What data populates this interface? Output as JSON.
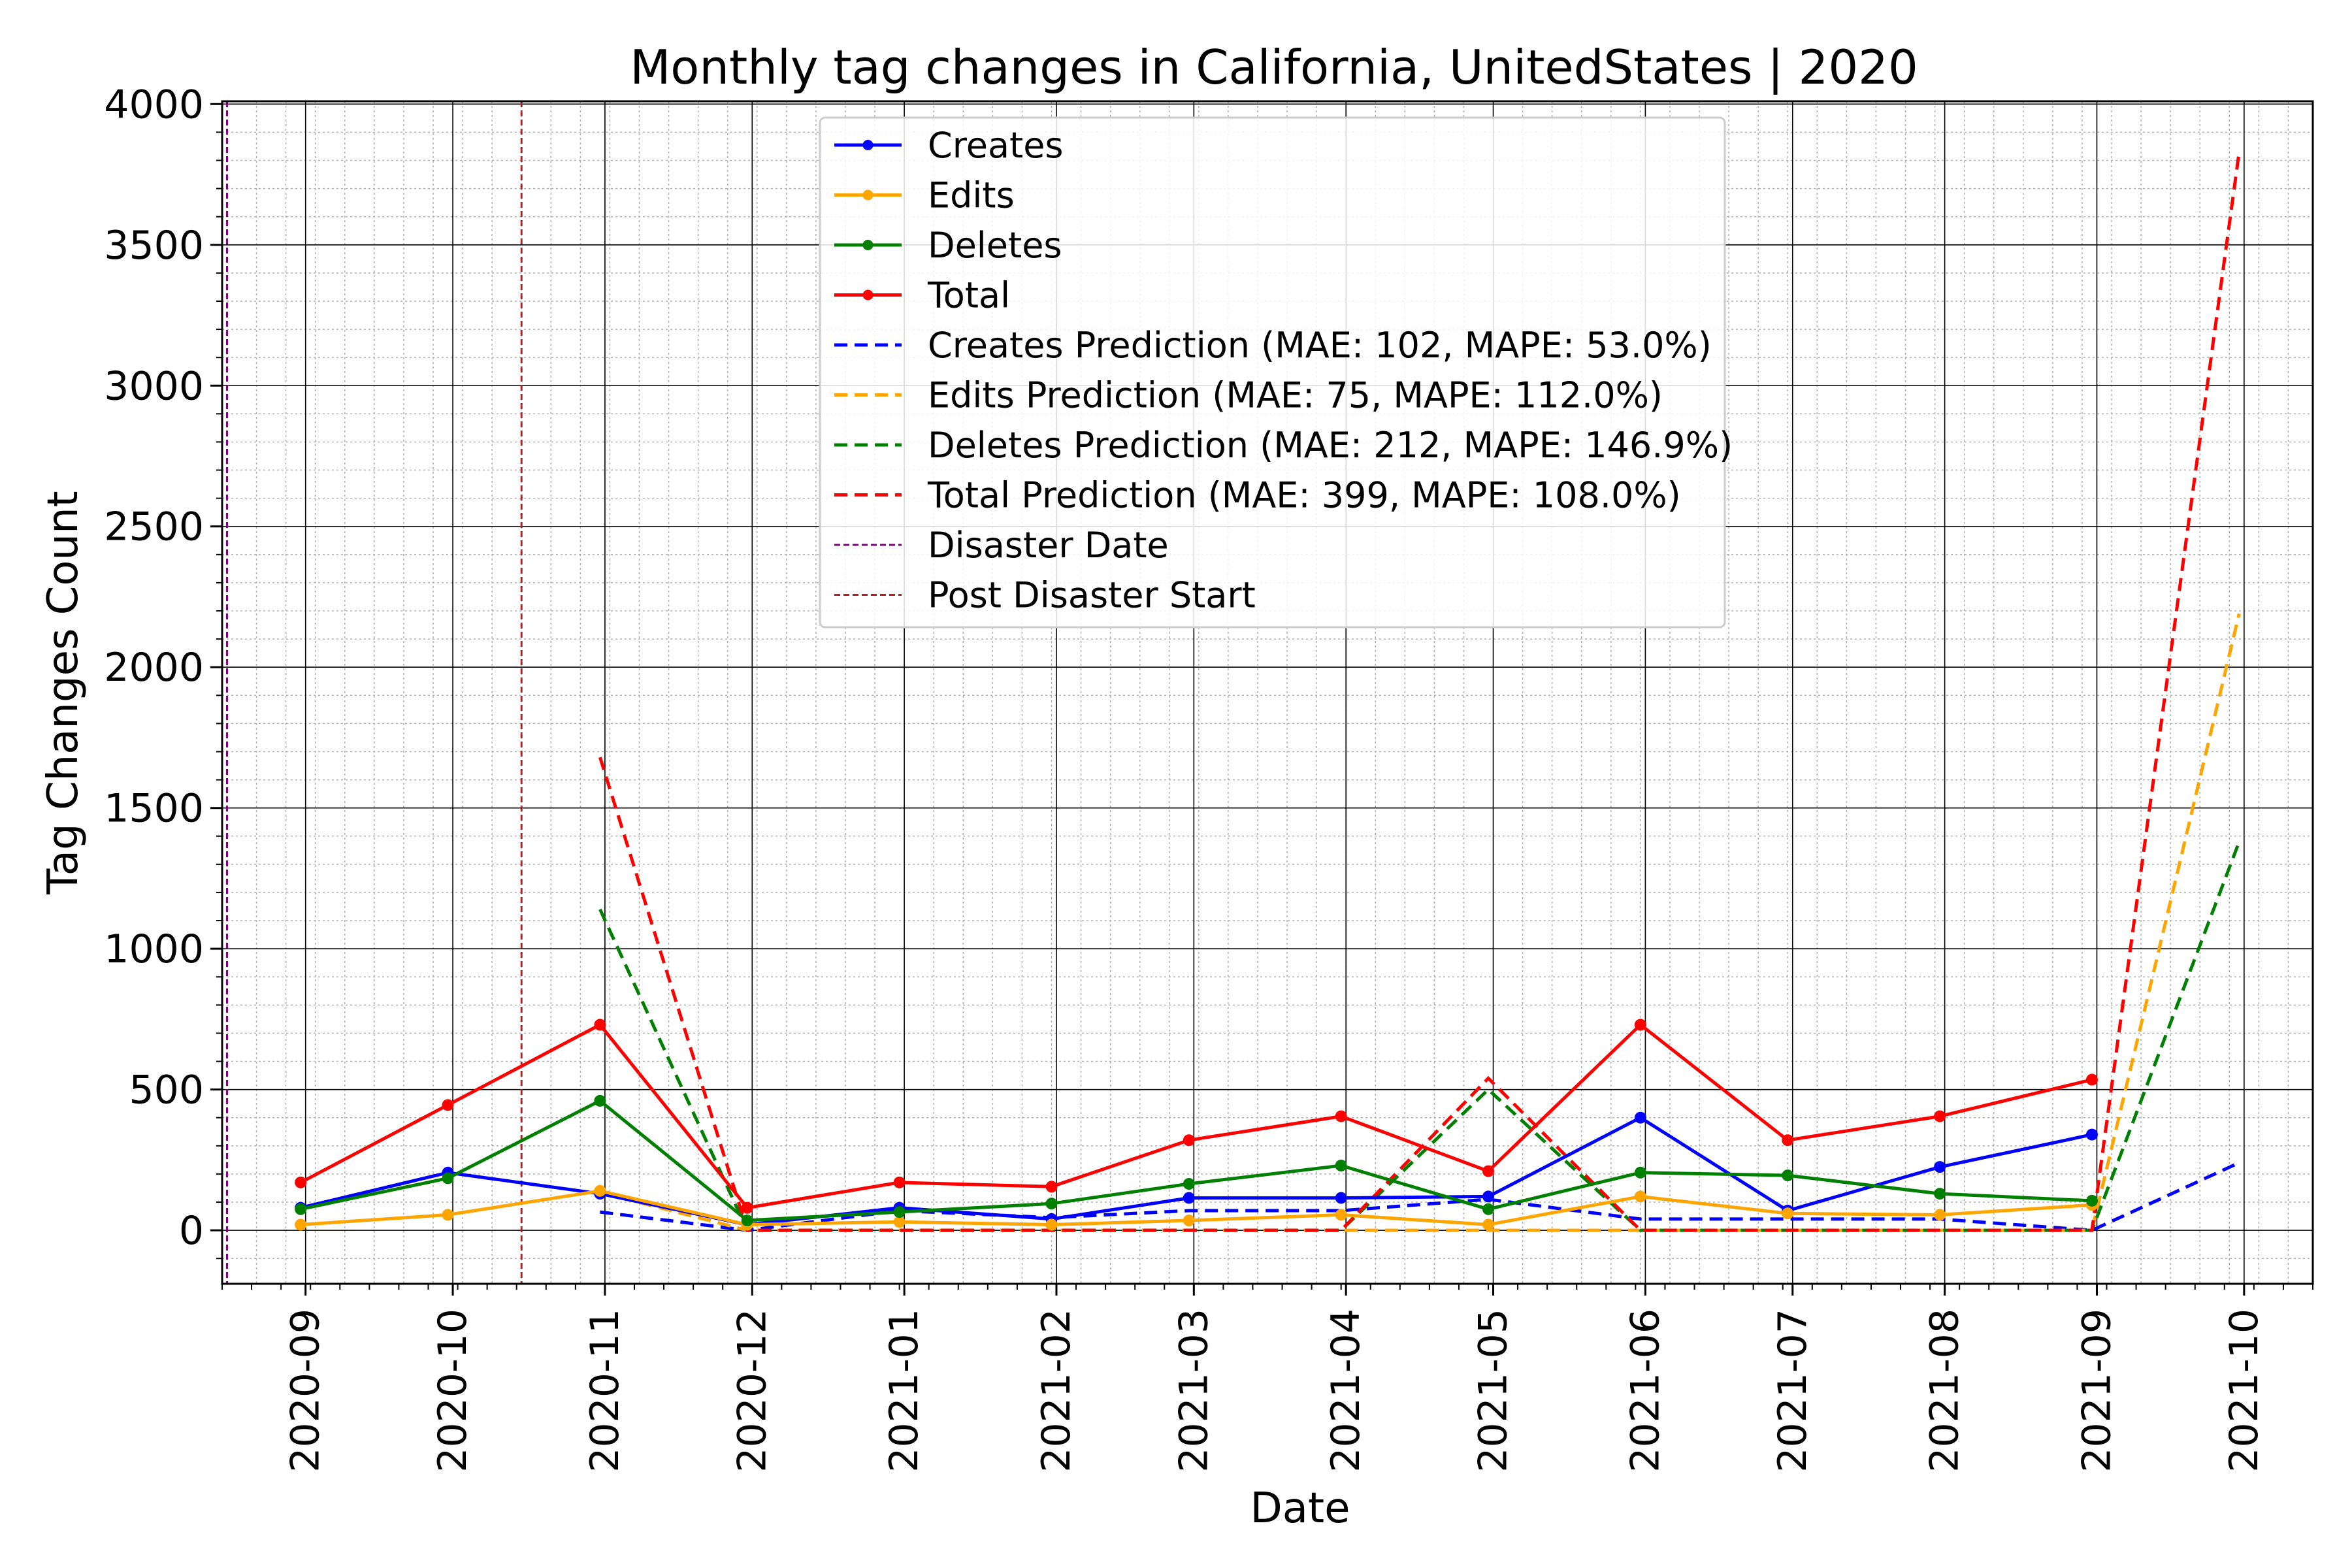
{
  "chart_data": {
    "type": "line",
    "title": "Monthly tag changes in California, UnitedStates | 2020",
    "xlabel": "Date",
    "ylabel": "Tag Changes Count",
    "ylim": [
      -190,
      4010
    ],
    "xlim": [
      "2020-08-15",
      "2021-10-15"
    ],
    "grid": "major and minor",
    "legend_position": "top-center",
    "x_ticks": [
      "2020-09",
      "2020-10",
      "2020-11",
      "2020-12",
      "2021-01",
      "2021-02",
      "2021-03",
      "2021-04",
      "2021-05",
      "2021-06",
      "2021-07",
      "2021-08",
      "2021-09",
      "2021-10"
    ],
    "y_ticks": [
      0,
      500,
      1000,
      1500,
      2000,
      2500,
      3000,
      3500,
      4000
    ],
    "x": [
      "2020-08-31",
      "2020-09-30",
      "2020-10-31",
      "2020-11-30",
      "2020-12-31",
      "2021-01-31",
      "2021-02-28",
      "2021-03-31",
      "2021-04-30",
      "2021-05-31",
      "2021-06-30",
      "2021-07-31",
      "2021-08-31"
    ],
    "series": [
      {
        "name": "Creates",
        "color": "#0000ff",
        "style": "solid",
        "values": [
          80,
          205,
          130,
          20,
          80,
          40,
          115,
          115,
          120,
          400,
          70,
          225,
          340
        ]
      },
      {
        "name": "Edits",
        "color": "#ffa500",
        "style": "solid",
        "values": [
          20,
          55,
          140,
          20,
          30,
          20,
          35,
          55,
          20,
          120,
          60,
          55,
          90
        ]
      },
      {
        "name": "Deletes",
        "color": "#008000",
        "style": "solid",
        "values": [
          75,
          185,
          460,
          35,
          65,
          95,
          165,
          230,
          75,
          205,
          195,
          130,
          105
        ]
      },
      {
        "name": "Total",
        "color": "#ff0000",
        "style": "solid",
        "values": [
          170,
          445,
          730,
          80,
          170,
          155,
          320,
          405,
          210,
          730,
          320,
          405,
          535
        ]
      }
    ],
    "prediction_x": [
      "2020-10-31",
      "2020-11-30",
      "2020-12-31",
      "2021-01-31",
      "2021-02-28",
      "2021-03-31",
      "2021-04-30",
      "2021-05-31",
      "2021-06-30",
      "2021-07-31",
      "2021-08-31",
      "2021-09-30"
    ],
    "prediction_series": [
      {
        "name": "Creates Prediction (MAE: 102, MAPE: 53.0%)",
        "color": "#0000ff",
        "style": "dashed",
        "values": [
          65,
          0,
          70,
          45,
          70,
          70,
          110,
          40,
          40,
          40,
          0,
          240
        ]
      },
      {
        "name": "Edits Prediction (MAE: 75, MAPE: 112.0%)",
        "color": "#ffa500",
        "style": "dashed",
        "values": [
          135,
          0,
          0,
          0,
          0,
          0,
          0,
          0,
          0,
          0,
          0,
          2190
        ]
      },
      {
        "name": "Deletes Prediction (MAE: 212, MAPE: 146.9%)",
        "color": "#008000",
        "style": "dashed",
        "values": [
          1140,
          0,
          0,
          0,
          0,
          0,
          500,
          0,
          0,
          0,
          0,
          1380
        ]
      },
      {
        "name": "Total Prediction (MAE: 399, MAPE: 108.0%)",
        "color": "#ff0000",
        "style": "dashed",
        "values": [
          1680,
          0,
          0,
          0,
          0,
          0,
          540,
          0,
          0,
          0,
          0,
          3830
        ]
      }
    ],
    "vertical_lines": [
      {
        "name": "Disaster Date",
        "date": "2020-08-16",
        "color": "#800080"
      },
      {
        "name": "Post Disaster Start",
        "date": "2020-10-15",
        "color": "#b22222"
      }
    ],
    "legend": [
      {
        "label": "Creates",
        "color": "#0000ff",
        "style": "solid-marker"
      },
      {
        "label": "Edits",
        "color": "#ffa500",
        "style": "solid-marker"
      },
      {
        "label": "Deletes",
        "color": "#008000",
        "style": "solid-marker"
      },
      {
        "label": "Total",
        "color": "#ff0000",
        "style": "solid-marker"
      },
      {
        "label": "Creates Prediction (MAE: 102, MAPE: 53.0%)",
        "color": "#0000ff",
        "style": "dashed"
      },
      {
        "label": "Edits Prediction (MAE: 75, MAPE: 112.0%)",
        "color": "#ffa500",
        "style": "dashed"
      },
      {
        "label": "Deletes Prediction (MAE: 212, MAPE: 146.9%)",
        "color": "#008000",
        "style": "dashed"
      },
      {
        "label": "Total Prediction (MAE: 399, MAPE: 108.0%)",
        "color": "#ff0000",
        "style": "dashed"
      },
      {
        "label": "Disaster Date",
        "color": "#800080",
        "style": "thin-dashed"
      },
      {
        "label": "Post Disaster Start",
        "color": "#b22222",
        "style": "thin-dashed"
      }
    ]
  }
}
